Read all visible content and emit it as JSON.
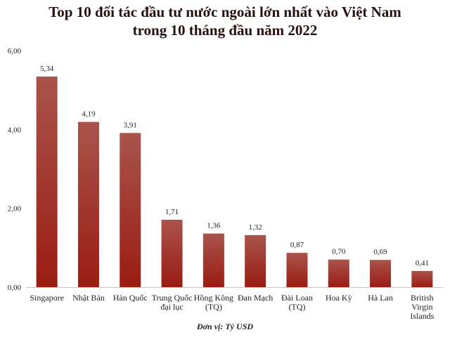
{
  "chart_data": {
    "type": "bar",
    "title": [
      "Top 10 đối tác đầu tư nước ngoài lớn nhất vào Việt Nam",
      "trong 10 tháng đầu năm 2022"
    ],
    "xlabel": "Đơn vị: Tỷ USD",
    "ylabel": "",
    "ylim": [
      0,
      6
    ],
    "yticks": [
      0,
      2,
      4,
      6
    ],
    "ytick_labels": [
      "0,00",
      "2,00",
      "4,00",
      "6,00"
    ],
    "categories": [
      [
        "Singapore"
      ],
      [
        "Nhật Bản"
      ],
      [
        "Hàn Quốc"
      ],
      [
        "Trung Quốc",
        "đại lục"
      ],
      [
        "Hồng Kông",
        "(TQ)"
      ],
      [
        "Đan Mạch"
      ],
      [
        "Đài Loan",
        "(TQ)"
      ],
      [
        "Hoa Kỳ"
      ],
      [
        "Hà Lan"
      ],
      [
        "British",
        "Virgin",
        "Islands"
      ]
    ],
    "values": [
      5.34,
      4.19,
      3.91,
      1.71,
      1.36,
      1.32,
      0.87,
      0.7,
      0.69,
      0.41
    ],
    "value_labels": [
      "5,34",
      "4,19",
      "3,91",
      "1,71",
      "1,36",
      "1,32",
      "0,87",
      "0,70",
      "0,69",
      "0,41"
    ],
    "grid": false,
    "legend": "none",
    "colors": {
      "bar_top": "#a9544c",
      "bar_bottom": "#9a1c12",
      "axis": "#c8c8c8",
      "text": "#222222"
    }
  }
}
